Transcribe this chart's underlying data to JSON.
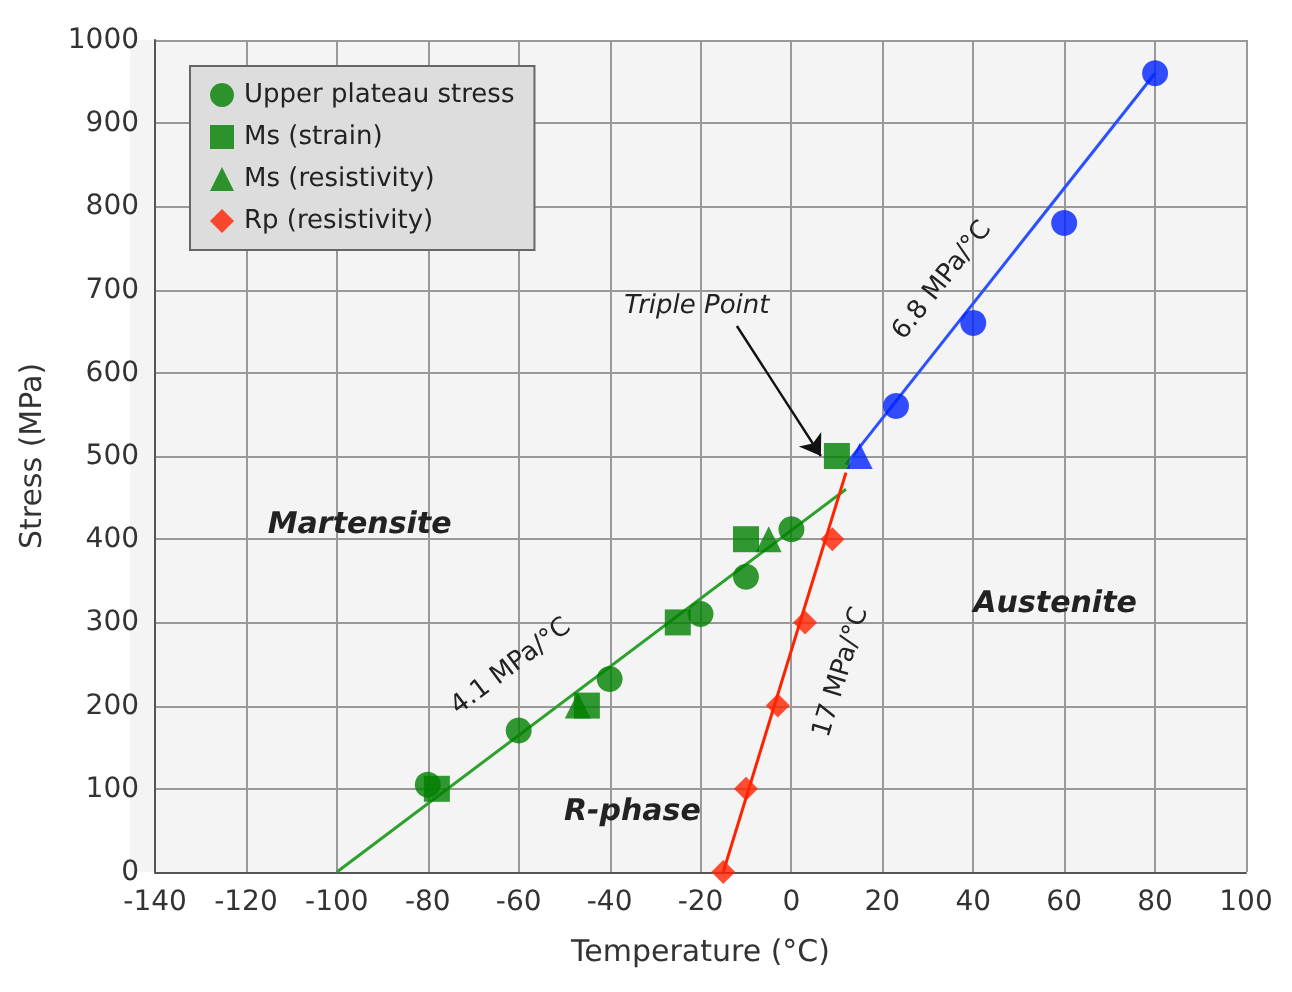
{
  "chart_data": {
    "type": "scatter",
    "xlabel": "Temperature (°C)",
    "ylabel": "Stress (MPa)",
    "xlim": [
      -140,
      100
    ],
    "xticks": [
      -140,
      -120,
      -100,
      -80,
      -60,
      -40,
      -20,
      0,
      20,
      40,
      60,
      80,
      100
    ],
    "ylim": [
      0,
      1000
    ],
    "yticks": [
      0,
      100,
      200,
      300,
      400,
      500,
      600,
      700,
      800,
      900,
      1000
    ],
    "grid": true,
    "legend": "top left",
    "series": [
      {
        "name": "Upper plateau stress",
        "color": "#008000",
        "marker": "circle",
        "x": [
          -80,
          -60,
          -40,
          -20,
          -10,
          0
        ],
        "values": [
          105,
          170,
          232,
          310,
          355,
          412
        ]
      },
      {
        "name": "Ms (strain)",
        "color": "#008000",
        "marker": "square",
        "x": [
          -78,
          -45,
          -25,
          -10,
          10
        ],
        "values": [
          100,
          200,
          300,
          400,
          500
        ]
      },
      {
        "name": "Ms (resistivity)",
        "color": "#008000",
        "marker": "triangle",
        "x": [
          -47,
          -5
        ],
        "values": [
          200,
          400
        ]
      },
      {
        "name": "Rp (resistivity)",
        "color": "#ff2200",
        "marker": "diamond",
        "x": [
          -15,
          -10,
          -3,
          3,
          9
        ],
        "values": [
          0,
          100,
          200,
          300,
          400
        ]
      },
      {
        "color": "#0022ff",
        "marker": "circle",
        "x": [
          23,
          40,
          60,
          80
        ],
        "values": [
          560,
          660,
          780,
          960
        ]
      },
      {
        "color": "#0022ff",
        "marker": "triangle",
        "x": [
          15
        ],
        "values": [
          500
        ]
      },
      {
        "type": "line",
        "color": "#2ea02e",
        "marker": "none",
        "x": [
          -100,
          12
        ],
        "values": [
          0,
          460
        ]
      },
      {
        "type": "line",
        "color": "#ff2200",
        "marker": "none",
        "x": [
          -15,
          12
        ],
        "values": [
          0,
          480
        ]
      },
      {
        "type": "line",
        "color": "#2b50ff",
        "marker": "none",
        "x": [
          12,
          80
        ],
        "values": [
          490,
          960
        ]
      }
    ],
    "annotations": [
      {
        "text": "Triple Point",
        "x": 10,
        "y": 500
      },
      "4.1 MPa/°C",
      "17 MPa/°C",
      "6.8 MPa/°C",
      "Martensite",
      "Austenite",
      "R-phase"
    ]
  }
}
